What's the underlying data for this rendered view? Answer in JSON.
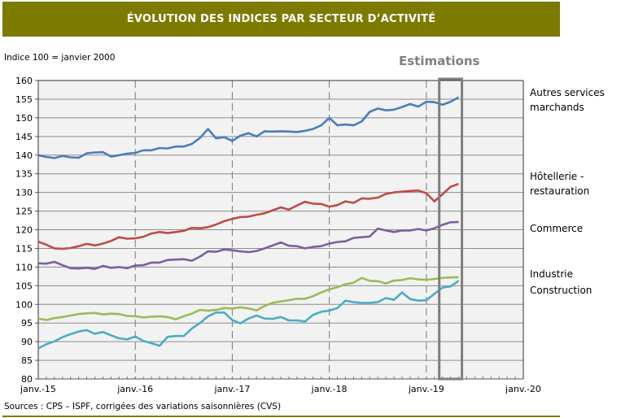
{
  "header": {
    "title": "ÉVOLUTION DES INDICES PAR SECTEUR D’ACTIVITÉ"
  },
  "unit_note": "Indice 100 = janvier 2000",
  "estimations_label": "Estimations",
  "source": "Sources : CPS – ISPF, corrigées des variations saisonnières (CVS)",
  "chart_data": {
    "type": "line",
    "title": "ÉVOLUTION DES INDICES PAR SECTEUR D’ACTIVITÉ",
    "ylabel": "Indice 100 = janvier 2000",
    "ylim": [
      80,
      160
    ],
    "yticks": [
      "80",
      "85",
      "90",
      "95",
      "100",
      "105",
      "110",
      "115",
      "120",
      "125",
      "130",
      "135",
      "140",
      "145",
      "150",
      "155",
      "160"
    ],
    "xticks": [
      "janv.-15",
      "janv.-16",
      "janv.-17",
      "janv.-18",
      "janv.-19",
      "janv.-20"
    ],
    "x_start": "2015-01",
    "x_frequency": "monthly",
    "x_months_total": 60,
    "estimation_period": [
      "2019-03",
      "2019-05"
    ],
    "grid": true,
    "series": [
      {
        "name": "Autres services marchands",
        "label_lines": [
          "Autres services",
          "marchands"
        ],
        "color": "#4a7ebb",
        "values": [
          140,
          139.5,
          139.2,
          139.8,
          139.4,
          139.3,
          140.5,
          140.7,
          140.8,
          139.6,
          140,
          140.4,
          140.6,
          141.3,
          141.3,
          141.9,
          141.8,
          142.3,
          142.3,
          143,
          144.6,
          147,
          144.5,
          144.8,
          143.8,
          145.2,
          145.9,
          145,
          146.4,
          146.3,
          146.4,
          146.3,
          146.2,
          146.5,
          147,
          148,
          150,
          148,
          148.2,
          148,
          149,
          151.6,
          152.5,
          152,
          152.2,
          152.9,
          153.7,
          153,
          154.3,
          154.2,
          153.5,
          154.3,
          155.5
        ]
      },
      {
        "name": "Hôtellerie - restauration",
        "label_lines": [
          "Hôtellerie -",
          "restauration"
        ],
        "color": "#be4b48",
        "values": [
          116.8,
          116,
          115,
          114.9,
          115.1,
          115.6,
          116.2,
          115.8,
          116.3,
          117,
          118,
          117.6,
          117.7,
          118.1,
          119,
          119.4,
          119.1,
          119.4,
          119.7,
          120.5,
          120.4,
          120.7,
          121.4,
          122.3,
          122.9,
          123.4,
          123.5,
          124,
          124.4,
          125.2,
          126,
          125.4,
          126.5,
          127.5,
          127,
          126.9,
          126.2,
          126.6,
          127.6,
          127.2,
          128.4,
          128.3,
          128.6,
          129.6,
          130,
          130.2,
          130.4,
          130.5,
          129.8,
          127.6,
          129.5,
          131.5,
          132.3
        ]
      },
      {
        "name": "Commerce",
        "label_lines": [
          "Commerce"
        ],
        "color": "#7d5fa0",
        "values": [
          111,
          110.9,
          111.4,
          110.5,
          109.7,
          109.6,
          109.8,
          109.5,
          110.3,
          109.8,
          110,
          109.7,
          110.4,
          110.5,
          111.2,
          111.2,
          111.9,
          112,
          112.1,
          111.7,
          112.8,
          114.2,
          114.1,
          114.7,
          114.5,
          114.2,
          114,
          114.3,
          115,
          115.8,
          116.6,
          115.7,
          115.6,
          115,
          115.4,
          115.6,
          116.3,
          116.7,
          116.9,
          117.8,
          118,
          118.2,
          120.3,
          119.8,
          119.4,
          119.8,
          119.8,
          120.2,
          119.8,
          120.4,
          121.3,
          122,
          122.1
        ]
      },
      {
        "name": "Industrie",
        "label_lines": [
          "Industrie"
        ],
        "color": "#9bbb59",
        "values": [
          96.2,
          95.8,
          96.3,
          96.6,
          97,
          97.4,
          97.6,
          97.7,
          97.3,
          97.5,
          97.4,
          96.9,
          96.8,
          96.5,
          96.7,
          96.8,
          96.6,
          96,
          96.8,
          97.5,
          98.5,
          98.3,
          98.5,
          99,
          98.9,
          99.2,
          98.9,
          98.4,
          99.6,
          100.4,
          100.8,
          101.1,
          101.5,
          101.5,
          102.2,
          103.2,
          104,
          104.6,
          105.4,
          105.8,
          107.1,
          106.3,
          106.2,
          105.6,
          106.4,
          106.5,
          107,
          106.7,
          106.6,
          106.8,
          107.1,
          107.2,
          107.3
        ]
      },
      {
        "name": "Construction",
        "label_lines": [
          "Construction"
        ],
        "color": "#4bacc6",
        "values": [
          88.2,
          89.3,
          90.1,
          91.2,
          92,
          92.7,
          93.1,
          92.1,
          92.6,
          91.7,
          90.9,
          90.6,
          91.4,
          90.2,
          89.6,
          88.9,
          91.3,
          91.5,
          91.5,
          93.5,
          95,
          96.8,
          97.8,
          97.8,
          95.8,
          94.9,
          96.2,
          97,
          96.2,
          96.1,
          96.6,
          95.7,
          95.7,
          95.4,
          97.2,
          98,
          98.3,
          99,
          101,
          100.6,
          100.4,
          100.4,
          100.6,
          101.7,
          101.2,
          103.2,
          101.4,
          101,
          101.1,
          102.8,
          104.5,
          104.8,
          106.3
        ]
      }
    ]
  }
}
